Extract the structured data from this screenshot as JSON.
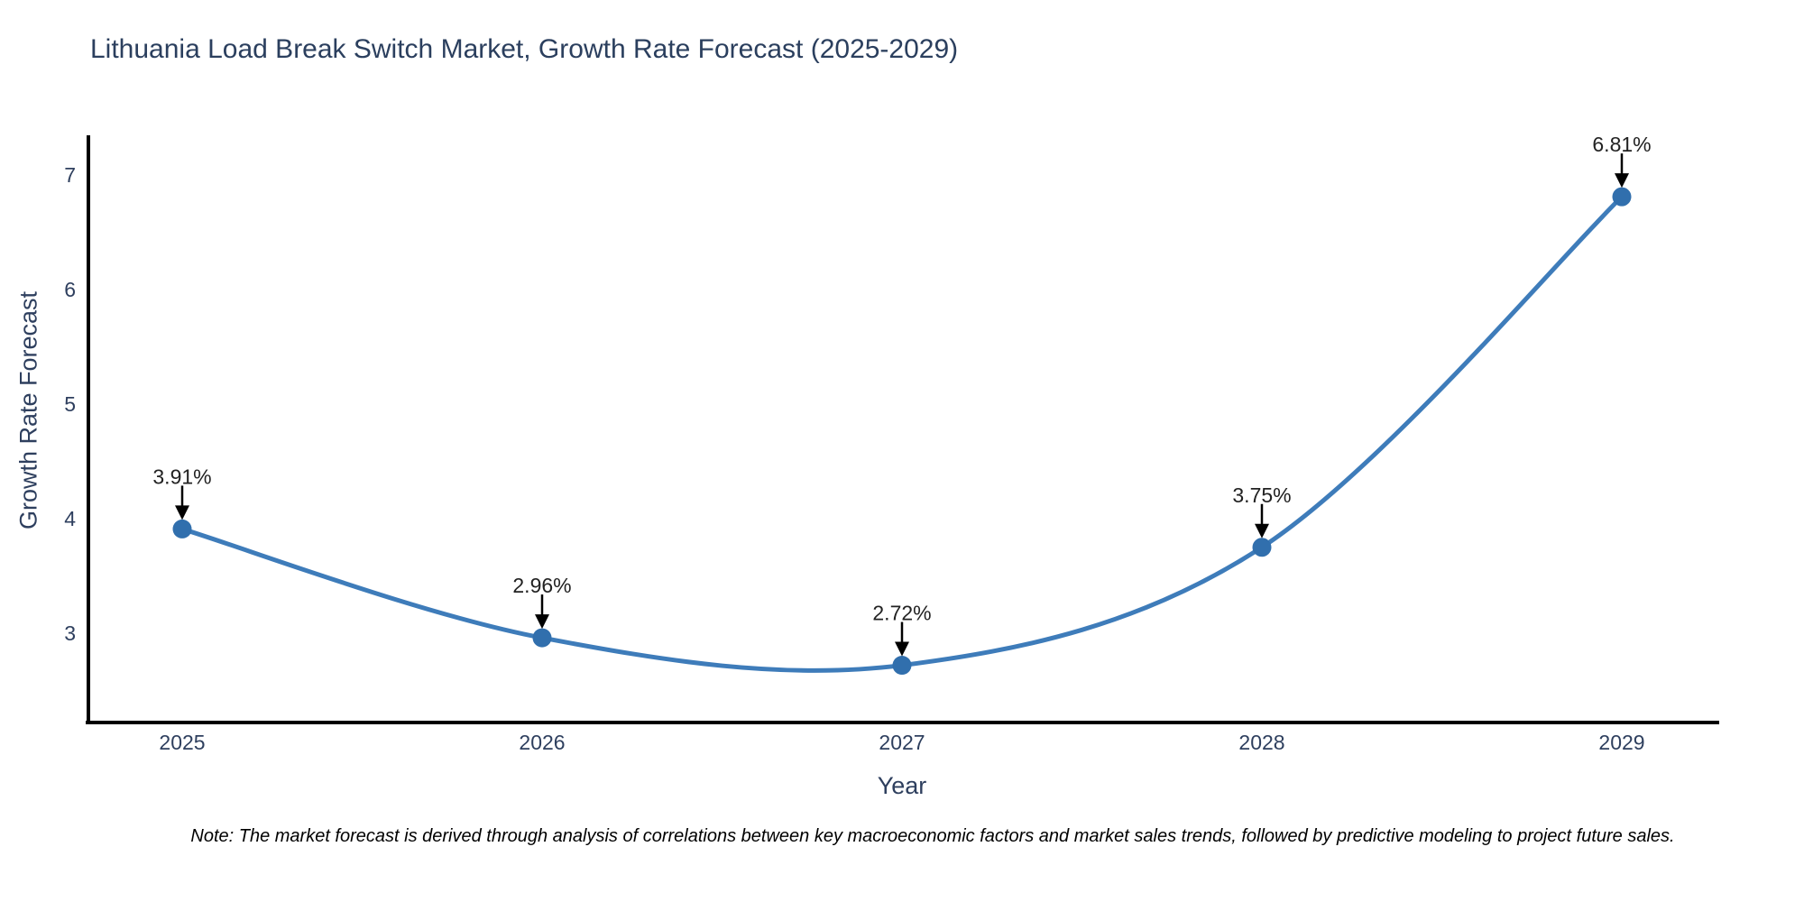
{
  "title": "Lithuania Load Break Switch Market, Growth Rate Forecast (2025-2029)",
  "note": "Note: The market forecast is derived through analysis of correlations between key macroeconomic factors and market sales trends, followed by predictive modeling to project future sales.",
  "chart_data": {
    "type": "line",
    "title": "Lithuania Load Break Switch Market, Growth Rate Forecast (2025-2029)",
    "xlabel": "Year",
    "ylabel": "Growth Rate Forecast",
    "x": [
      2025,
      2026,
      2027,
      2028,
      2029
    ],
    "series": [
      {
        "name": "Growth Rate Forecast",
        "values": [
          3.91,
          2.96,
          2.72,
          3.75,
          6.81
        ],
        "point_labels": [
          "3.91%",
          "2.96%",
          "2.72%",
          "3.75%",
          "6.81%"
        ]
      }
    ],
    "y_ticks": [
      3,
      4,
      5,
      6,
      7
    ],
    "ylim": [
      2.2,
      7.35
    ],
    "xlim": [
      2024.74,
      2029.27
    ],
    "line_shape": "spline",
    "grid": false,
    "legend_position": "none",
    "colors": {
      "line": "#3e7cba",
      "marker": "#316fad",
      "arrow": "#000000",
      "annotation_text": "#222222",
      "axis_line": "#000000",
      "tick_label": "#2e3f5e",
      "axis_title": "#2e3f5e",
      "title": "#2b3f5e",
      "background": "#ffffff"
    }
  }
}
